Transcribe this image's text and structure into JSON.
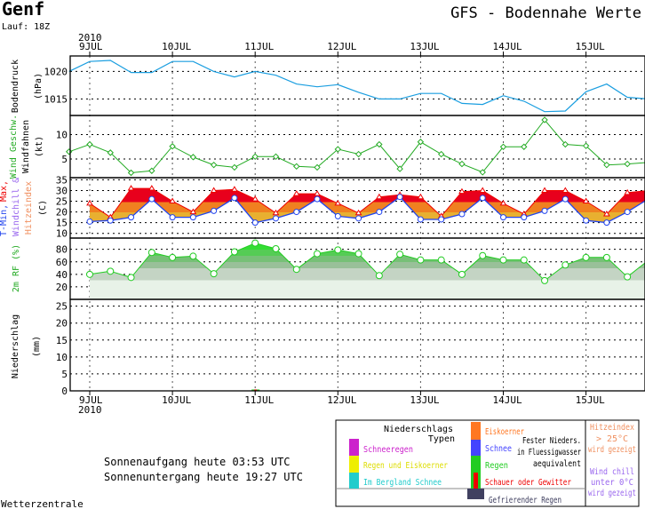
{
  "header": {
    "city": "Genf",
    "run": "Lauf: 18Z",
    "title": "GFS - Bodennahe Werte"
  },
  "axis": {
    "year_top": "2010",
    "year_bottom": "2010",
    "days": [
      "9JUL",
      "10JUL",
      "11JUL",
      "12JUL",
      "13JUL",
      "14JUL",
      "15JUL"
    ]
  },
  "panels": {
    "pressure": {
      "label": "Bodendruck",
      "unit": "(hPa)",
      "ticks": [
        "1020",
        "1015"
      ]
    },
    "wind": {
      "label1": "Wind Geschw.",
      "label2": "Windfahnen",
      "unit": "(kt)",
      "ticks": [
        "10",
        "5"
      ]
    },
    "temp": {
      "label1": "T-Min,",
      "label1b": "Max,",
      "label2": "Windchill &",
      "label3": "Hitzeindex",
      "unit": "(C)",
      "ticks": [
        "35",
        "30",
        "25",
        "20",
        "15",
        "10"
      ]
    },
    "rh": {
      "label": "2m RF (%)",
      "ticks": [
        "80",
        "60",
        "40",
        "20"
      ]
    },
    "precip": {
      "label": "Niederschlag",
      "unit": "(mm)",
      "ticks": [
        "25",
        "20",
        "15",
        "10",
        "5",
        "0"
      ]
    }
  },
  "chart_data": {
    "type": "line",
    "x_hours_from_9JUL_00Z": [
      -6,
      0,
      6,
      12,
      18,
      24,
      30,
      36,
      42,
      48,
      54,
      60,
      66,
      72,
      78,
      84,
      90,
      96,
      102,
      108,
      114,
      120,
      126,
      132,
      138,
      144,
      150,
      156,
      162
    ],
    "series": [
      {
        "name": "Bodendruck (hPa)",
        "color": "#1a9ee0",
        "ylim": [
          1012,
          1023
        ],
        "values": [
          1020,
          1021.8,
          1022,
          1019.8,
          1019.8,
          1021.8,
          1021.8,
          1020,
          1019,
          1020,
          1019.3,
          1017.7,
          1017.2,
          1017.6,
          1016.2,
          1015,
          1015,
          1016,
          1016,
          1014.2,
          1014,
          1015.6,
          1014.6,
          1012.7,
          1012.8,
          1016.3,
          1017.7,
          1015.3,
          1015
        ]
      },
      {
        "name": "Wind Geschw. (kt)",
        "color": "#22aa22",
        "ylim": [
          0,
          14
        ],
        "values": [
          6.5,
          8,
          6.3,
          2.2,
          2.6,
          7.6,
          5.4,
          3.8,
          3.3,
          5.5,
          5.5,
          3.5,
          3.3,
          7,
          6,
          8,
          3,
          8.5,
          6,
          4,
          2.3,
          7.5,
          7.5,
          13,
          8,
          7.7,
          3.8,
          4,
          4.3
        ]
      },
      {
        "name": "T-Min (C)",
        "color": "#2244ee",
        "ylim": [
          7,
          35
        ],
        "values": [
          null,
          15.5,
          16,
          17.5,
          26,
          17.5,
          17.5,
          20.5,
          26.5,
          15,
          17,
          20,
          26,
          18,
          17,
          20,
          27,
          16.5,
          16.5,
          19,
          26.5,
          17.5,
          17.5,
          20.5,
          26,
          16,
          15,
          20,
          26
        ]
      },
      {
        "name": "T-Max (C)",
        "color": "#ee0000",
        "ylim": [
          7,
          35
        ],
        "values": [
          null,
          24,
          17.5,
          31,
          31,
          25,
          20,
          30,
          30.5,
          26,
          19.5,
          28.5,
          28.5,
          24,
          19.5,
          27,
          28,
          27,
          18,
          29.5,
          30,
          24,
          19,
          30,
          30,
          25,
          19,
          29,
          30
        ]
      },
      {
        "name": "2m RF (%)",
        "color": "#22cc22",
        "ylim": [
          0,
          95
        ],
        "values": [
          null,
          40,
          45,
          35,
          75,
          67,
          69,
          41,
          76,
          90,
          81,
          48,
          73,
          79,
          73,
          38,
          72,
          63,
          63,
          40,
          70,
          63,
          63,
          30,
          55,
          67,
          67,
          36,
          62
        ]
      },
      {
        "name": "Niederschlag (mm)",
        "color": "#22cc22",
        "ylim": [
          0,
          27
        ],
        "values": [
          0,
          0,
          0,
          0,
          0,
          0,
          0,
          0,
          0,
          0.4,
          0,
          0,
          0,
          0,
          0,
          0,
          0,
          0,
          0,
          0,
          0,
          0,
          0,
          0,
          0,
          0,
          0,
          0,
          0
        ]
      }
    ]
  },
  "legend": {
    "title1": "Niederschlags",
    "title2": "Typen",
    "items": [
      {
        "label": "Schneeregen",
        "color": "#cc22cc"
      },
      {
        "label": "Regen und Eiskoerner",
        "color": "#eeee00"
      },
      {
        "label": "Im Bergland Schnee",
        "color": "#22cccc"
      },
      {
        "label": "Eiskoerner",
        "color": "#ff7722"
      },
      {
        "label": "Schnee",
        "color": "#4444ff"
      },
      {
        "label": "Regen",
        "color": "#22cc22"
      },
      {
        "label": "Schauer oder Gewitter",
        "color": "#ee0000"
      },
      {
        "label": "Gefrierender Regen",
        "color": "#404060"
      }
    ],
    "note1": "Fester Nieders.",
    "note2": "in Fluessigwasser",
    "note3": "aequivalent",
    "heat1": "Hitzeindex",
    "heat2": "> 25°C",
    "heat3": "wird gezeigt",
    "chill1": "Wind chill",
    "chill2": "unter 0°C",
    "chill3": "wird gezeigt"
  },
  "footer": {
    "sunrise": "Sonnenaufgang heute 03:53 UTC",
    "sunset": "Sonnenuntergang heute 19:27 UTC",
    "source": "Wetterzentrale"
  }
}
